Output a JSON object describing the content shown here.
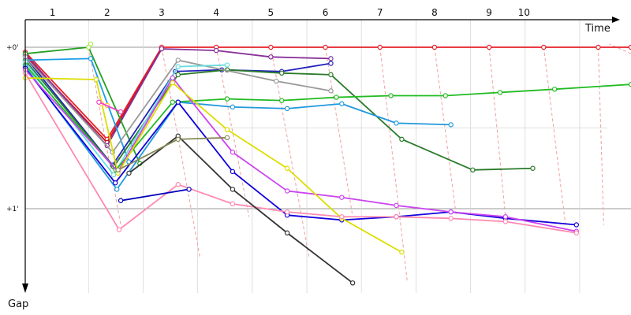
{
  "chart_data": {
    "type": "line",
    "title": "",
    "xlabel": "Time",
    "ylabel": "Gap",
    "x_ticks": [
      "1",
      "2",
      "3",
      "4",
      "5",
      "6",
      "7",
      "8",
      "9",
      "10"
    ],
    "y_ticks": [
      {
        "label": "+0'",
        "value": 0
      },
      {
        "label": "+1'",
        "value": 1
      }
    ],
    "xlim": [
      0,
      11.1
    ],
    "ylim": [
      -0.25,
      1.5
    ],
    "gridlines": true,
    "lap_lines_x": [
      1.16,
      2.16,
      3.16,
      4.16,
      5.16,
      6.16,
      7.16,
      8.16,
      9.16,
      10.16,
      11.16
    ],
    "series": [
      {
        "color": "#e8202a",
        "points": [
          [
            0,
            0.03
          ],
          [
            1.5,
            0.57
          ],
          [
            2.5,
            0
          ],
          [
            3.5,
            0
          ],
          [
            4.5,
            0
          ],
          [
            5.5,
            0
          ],
          [
            6.5,
            0
          ],
          [
            7.5,
            0
          ],
          [
            8.5,
            0
          ],
          [
            9.5,
            0
          ],
          [
            10.5,
            0
          ],
          [
            11.1,
            0
          ]
        ]
      },
      {
        "color": "#cc1020",
        "points": [
          [
            0,
            0.05
          ],
          [
            1.5,
            0.59
          ],
          [
            2.5,
            0.01
          ]
        ]
      },
      {
        "color": "#883099",
        "points": [
          [
            0,
            0.04
          ],
          [
            1.5,
            0.61
          ],
          [
            2.5,
            0.01
          ],
          [
            3.5,
            0.02
          ],
          [
            4.5,
            0.06
          ],
          [
            5.6,
            0.07
          ]
        ]
      },
      {
        "color": "#22a022",
        "points": [
          [
            0,
            0.04
          ],
          [
            1.16,
            0
          ],
          [
            2.1,
            0.72
          ]
        ]
      },
      {
        "color": "#aaee44",
        "points": [
          [
            1.16,
            0
          ],
          [
            1.2,
            -0.02
          ]
        ]
      },
      {
        "color": "#1a9ee8",
        "points": [
          [
            0,
            0.08
          ],
          [
            1.2,
            0.07
          ],
          [
            1.9,
            0.71
          ]
        ]
      },
      {
        "color": "#2222bb",
        "points": [
          [
            0,
            0.06
          ],
          [
            1.6,
            0.73
          ],
          [
            2.75,
            0.15
          ],
          [
            3.6,
            0.14
          ],
          [
            4.7,
            0.15
          ],
          [
            5.6,
            0.1
          ]
        ]
      },
      {
        "color": "#2a7a2a",
        "points": [
          [
            0,
            0.08
          ],
          [
            1.62,
            0.74
          ],
          [
            2.8,
            0.17
          ],
          [
            3.7,
            0.14
          ],
          [
            4.7,
            0.16
          ],
          [
            5.6,
            0.17
          ],
          [
            6.9,
            0.57
          ],
          [
            8.2,
            0.76
          ],
          [
            9.3,
            0.75
          ]
        ]
      },
      {
        "color": "#999999",
        "points": [
          [
            0,
            0.06
          ],
          [
            1.6,
            0.65
          ],
          [
            2.8,
            0.08
          ],
          [
            4.6,
            0.21
          ],
          [
            5.6,
            0.27
          ]
        ]
      },
      {
        "color": "#66dddd",
        "points": [
          [
            0,
            0.09
          ],
          [
            1.62,
            0.79
          ],
          [
            2.8,
            0.12
          ],
          [
            3.7,
            0.11
          ]
        ]
      },
      {
        "color": "#22bb22",
        "points": [
          [
            0,
            0.11
          ],
          [
            1.66,
            0.76
          ],
          [
            2.7,
            0.34
          ],
          [
            3.7,
            0.32
          ],
          [
            4.7,
            0.33
          ],
          [
            5.7,
            0.31
          ],
          [
            6.7,
            0.3
          ],
          [
            7.7,
            0.3
          ],
          [
            8.7,
            0.28
          ],
          [
            9.7,
            0.26
          ],
          [
            11.1,
            0.23
          ]
        ]
      },
      {
        "color": "#2299dd",
        "points": [
          [
            0,
            0.12
          ],
          [
            1.68,
            0.88
          ],
          [
            2.8,
            0.34
          ],
          [
            3.8,
            0.37
          ],
          [
            4.8,
            0.38
          ],
          [
            5.8,
            0.35
          ],
          [
            6.8,
            0.47
          ],
          [
            7.8,
            0.48
          ]
        ]
      },
      {
        "color": "#1100dd",
        "points": [
          [
            0,
            0.13
          ],
          [
            1.65,
            0.84
          ],
          [
            2.8,
            0.34
          ],
          [
            3.8,
            0.77
          ],
          [
            4.8,
            1.04
          ],
          [
            5.8,
            1.07
          ],
          [
            6.8,
            1.05
          ],
          [
            7.8,
            1.02
          ],
          [
            8.8,
            1.06
          ],
          [
            10.1,
            1.1
          ]
        ]
      },
      {
        "color": "#cc44ee",
        "points": [
          [
            0,
            0.14
          ],
          [
            1.7,
            0.77
          ],
          [
            2.7,
            0.19
          ],
          [
            3.8,
            0.65
          ],
          [
            4.8,
            0.89
          ],
          [
            5.8,
            0.93
          ],
          [
            6.8,
            0.98
          ],
          [
            7.8,
            1.02
          ],
          [
            8.8,
            1.05
          ],
          [
            10.1,
            1.14
          ]
        ]
      },
      {
        "color": "#dddd00",
        "points": [
          [
            0,
            0.19
          ],
          [
            1.3,
            0.2
          ],
          [
            1.7,
            0.78
          ],
          [
            2.7,
            0.22
          ],
          [
            3.7,
            0.51
          ],
          [
            4.8,
            0.75
          ],
          [
            5.8,
            1.06
          ],
          [
            6.9,
            1.27
          ]
        ]
      },
      {
        "color": "#ff8ab0",
        "points": [
          [
            0,
            0.16
          ],
          [
            1.72,
            1.13
          ],
          [
            2.8,
            0.85
          ],
          [
            3.8,
            0.97
          ],
          [
            4.8,
            1.02
          ],
          [
            5.8,
            1.05
          ],
          [
            6.8,
            1.05
          ],
          [
            7.8,
            1.06
          ],
          [
            8.8,
            1.08
          ],
          [
            10.1,
            1.15
          ]
        ]
      },
      {
        "color": "#333333",
        "points": [
          [
            1.9,
            0.78
          ],
          [
            2.8,
            0.55
          ],
          [
            3.8,
            0.88
          ],
          [
            4.8,
            1.15
          ],
          [
            6.0,
            1.46
          ]
        ]
      },
      {
        "color": "#888855",
        "points": [
          [
            1.7,
            0.76
          ],
          [
            2.8,
            0.57
          ],
          [
            3.7,
            0.56
          ]
        ]
      },
      {
        "color": "#0000bb",
        "points": [
          [
            1.75,
            0.95
          ],
          [
            3.0,
            0.88
          ]
        ]
      },
      {
        "color": "#ffbb33",
        "points": [
          [
            1.5,
            0.36
          ],
          [
            1.4,
            0.35
          ]
        ]
      },
      {
        "color": "#ee44cc",
        "points": [
          [
            1.35,
            0.34
          ],
          [
            1.75,
            0.4
          ]
        ]
      }
    ]
  }
}
